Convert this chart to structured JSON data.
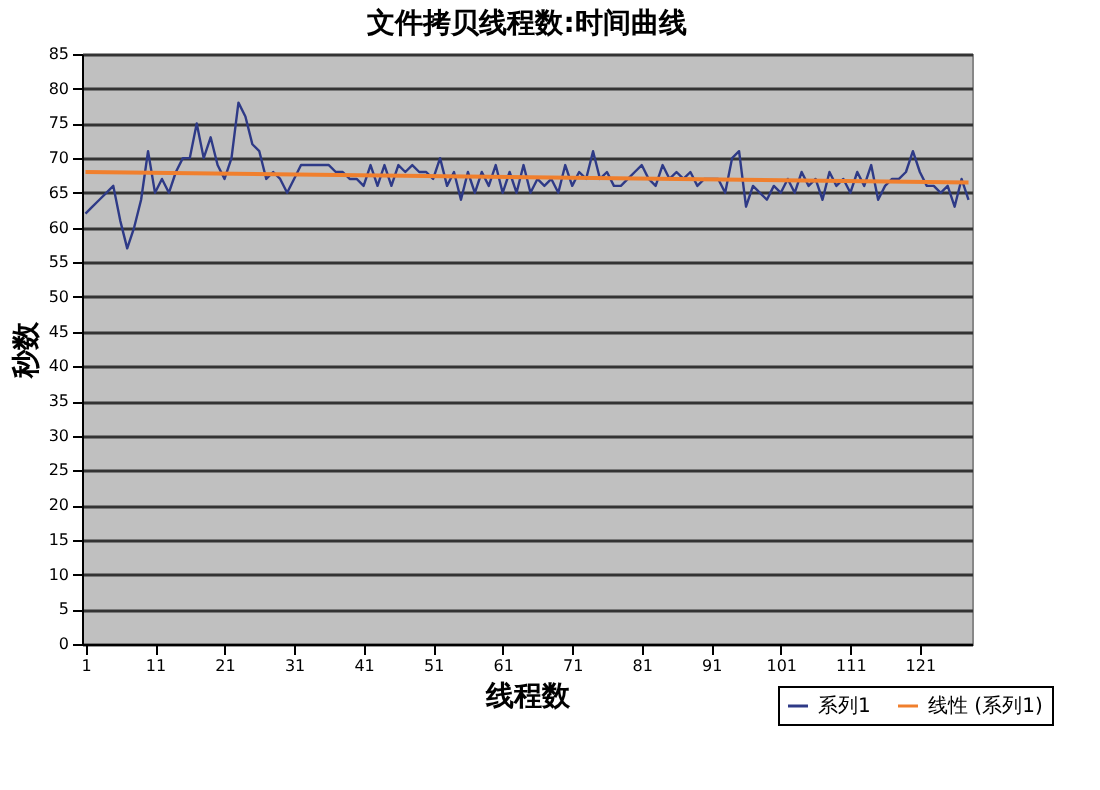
{
  "chart_data": {
    "type": "line",
    "title": "文件拷贝线程数:时间曲线",
    "xlabel": "线程数",
    "ylabel": "秒数",
    "x": [
      1,
      2,
      3,
      4,
      5,
      6,
      7,
      8,
      9,
      10,
      11,
      12,
      13,
      14,
      15,
      16,
      17,
      18,
      19,
      20,
      21,
      22,
      23,
      24,
      25,
      26,
      27,
      28,
      29,
      30,
      31,
      32,
      33,
      34,
      35,
      36,
      37,
      38,
      39,
      40,
      41,
      42,
      43,
      44,
      45,
      46,
      47,
      48,
      49,
      50,
      51,
      52,
      53,
      54,
      55,
      56,
      57,
      58,
      59,
      60,
      61,
      62,
      63,
      64,
      65,
      66,
      67,
      68,
      69,
      70,
      71,
      72,
      73,
      74,
      75,
      76,
      77,
      78,
      79,
      80,
      81,
      82,
      83,
      84,
      85,
      86,
      87,
      88,
      89,
      90,
      91,
      92,
      93,
      94,
      95,
      96,
      97,
      98,
      99,
      100,
      101,
      102,
      103,
      104,
      105,
      106,
      107,
      108,
      109,
      110,
      111,
      112,
      113,
      114,
      115,
      116,
      117,
      118,
      119,
      120,
      121,
      122,
      123,
      124,
      125,
      126,
      127,
      128
    ],
    "series": [
      {
        "name": "系列1",
        "color": "#2e3a87",
        "values": [
          62,
          63,
          64,
          65,
          66,
          61,
          57,
          60,
          64,
          71,
          65,
          67,
          65,
          68,
          70,
          70,
          75,
          70,
          73,
          69,
          67,
          70,
          78,
          76,
          72,
          71,
          67,
          68,
          67,
          65,
          67,
          69,
          69,
          69,
          69,
          69,
          68,
          68,
          67,
          67,
          66,
          69,
          66,
          69,
          66,
          69,
          68,
          69,
          68,
          68,
          67,
          70,
          66,
          68,
          64,
          68,
          65,
          68,
          66,
          69,
          65,
          68,
          65,
          69,
          65,
          67,
          66,
          67,
          65,
          69,
          66,
          68,
          67,
          71,
          67,
          68,
          66,
          66,
          67,
          68,
          69,
          67,
          66,
          69,
          67,
          68,
          67,
          68,
          66,
          67,
          67,
          67,
          65,
          70,
          71,
          63,
          66,
          65,
          64,
          66,
          65,
          67,
          65,
          68,
          66,
          67,
          64,
          68,
          66,
          67,
          65,
          68,
          66,
          69,
          64,
          66,
          67,
          67,
          68,
          71,
          68,
          66,
          66,
          65,
          66,
          63,
          67,
          64
        ]
      },
      {
        "name": "线性 (系列1)",
        "type": "line",
        "color": "#f07f2d",
        "x": [
          1,
          128
        ],
        "values": [
          68,
          66.5
        ]
      }
    ],
    "xlim": [
      0.5,
      128.5
    ],
    "xticks": [
      1,
      11,
      21,
      31,
      41,
      51,
      61,
      71,
      81,
      91,
      101,
      111,
      121
    ],
    "ylim": [
      0,
      85
    ],
    "yticks": [
      0,
      5,
      10,
      15,
      20,
      25,
      30,
      35,
      40,
      45,
      50,
      55,
      60,
      65,
      70,
      75,
      80,
      85
    ],
    "grid": "y",
    "legend": "bottom right",
    "marker": "none",
    "line_style": "solid"
  }
}
